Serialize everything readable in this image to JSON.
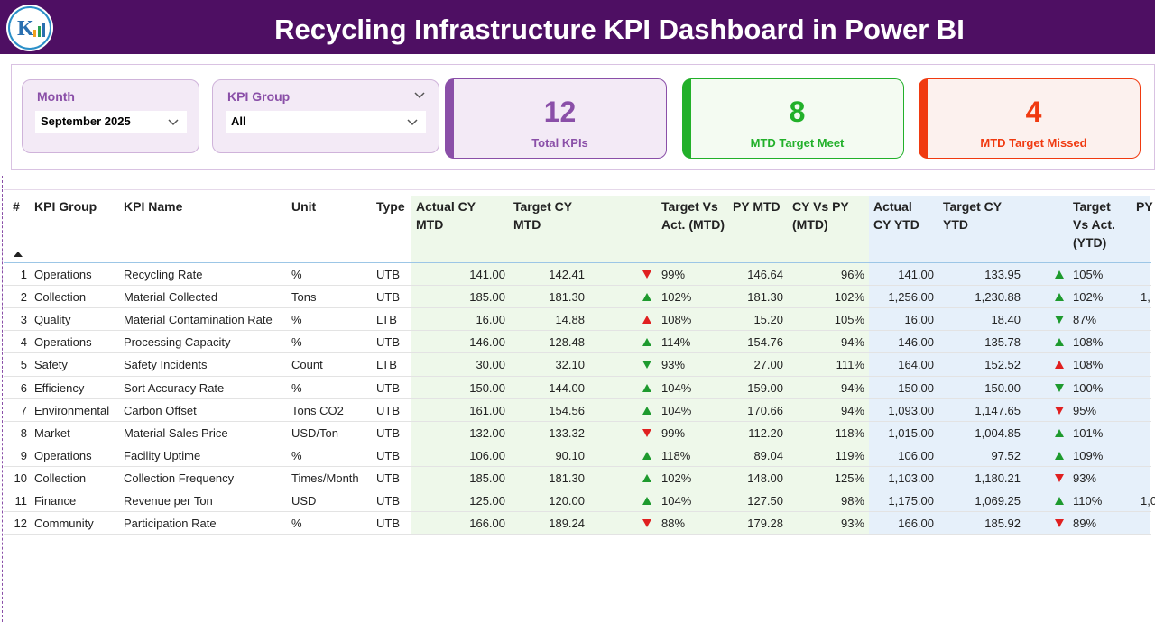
{
  "header": {
    "title": "Recycling Infrastructure KPI Dashboard in Power BI"
  },
  "slicers": [
    {
      "label": "Month",
      "value": "September 2025"
    },
    {
      "label": "KPI Group",
      "value": "All"
    }
  ],
  "cards": [
    {
      "value": "12",
      "label": "Total KPIs",
      "color": "#8a4fa8",
      "bg": "#f3eaf6"
    },
    {
      "value": "8",
      "label": "MTD Target Meet",
      "color": "#22b02a",
      "bg": "#f4fbf2"
    },
    {
      "value": "4",
      "label": "MTD Target Missed",
      "color": "#f03a10",
      "bg": "#fcf1ee"
    }
  ],
  "table": {
    "columns": [
      "#",
      "KPI Group",
      "KPI Name",
      "Unit",
      "Type",
      "Actual CY MTD",
      "Target CY MTD",
      "Target Vs Act. (MTD)",
      "PY MTD",
      "CY Vs PY (MTD)",
      "Actual CY YTD",
      "Target CY YTD",
      "Target Vs Act. (YTD)"
    ],
    "rows": [
      {
        "cells": [
          "1",
          "Operations",
          "Recycling Rate",
          "%",
          "UTB",
          "141.00",
          "142.41",
          "99%",
          "146.64",
          "96%",
          "141.00",
          "133.95",
          "105%"
        ],
        "mtd_arrow": "down-red",
        "ytd_arrow": "up-green"
      },
      {
        "cells": [
          "2",
          "Collection",
          "Material Collected",
          "Tons",
          "UTB",
          "185.00",
          "181.30",
          "102%",
          "181.30",
          "102%",
          "1,256.00",
          "1,230.88",
          "102%"
        ],
        "mtd_arrow": "up-green",
        "ytd_arrow": "up-green"
      },
      {
        "cells": [
          "3",
          "Quality",
          "Material Contamination Rate",
          "%",
          "LTB",
          "16.00",
          "14.88",
          "108%",
          "15.20",
          "105%",
          "16.00",
          "18.40",
          "87%"
        ],
        "mtd_arrow": "up-red",
        "ytd_arrow": "down-green"
      },
      {
        "cells": [
          "4",
          "Operations",
          "Processing Capacity",
          "%",
          "UTB",
          "146.00",
          "128.48",
          "114%",
          "154.76",
          "94%",
          "146.00",
          "135.78",
          "108%"
        ],
        "mtd_arrow": "up-green",
        "ytd_arrow": "up-green"
      },
      {
        "cells": [
          "5",
          "Safety",
          "Safety Incidents",
          "Count",
          "LTB",
          "30.00",
          "32.10",
          "93%",
          "27.00",
          "111%",
          "164.00",
          "152.52",
          "108%"
        ],
        "mtd_arrow": "down-green",
        "ytd_arrow": "up-red"
      },
      {
        "cells": [
          "6",
          "Efficiency",
          "Sort Accuracy Rate",
          "%",
          "UTB",
          "150.00",
          "144.00",
          "104%",
          "159.00",
          "94%",
          "150.00",
          "150.00",
          "100%"
        ],
        "mtd_arrow": "up-green",
        "ytd_arrow": "down-green"
      },
      {
        "cells": [
          "7",
          "Environmental",
          "Carbon Offset",
          "Tons CO2",
          "UTB",
          "161.00",
          "154.56",
          "104%",
          "170.66",
          "94%",
          "1,093.00",
          "1,147.65",
          "95%"
        ],
        "mtd_arrow": "up-green",
        "ytd_arrow": "down-red"
      },
      {
        "cells": [
          "8",
          "Market",
          "Material Sales Price",
          "USD/Ton",
          "UTB",
          "132.00",
          "133.32",
          "99%",
          "112.20",
          "118%",
          "1,015.00",
          "1,004.85",
          "101%"
        ],
        "mtd_arrow": "down-red",
        "ytd_arrow": "up-green"
      },
      {
        "cells": [
          "9",
          "Operations",
          "Facility Uptime",
          "%",
          "UTB",
          "106.00",
          "90.10",
          "118%",
          "89.04",
          "119%",
          "106.00",
          "97.52",
          "109%"
        ],
        "mtd_arrow": "up-green",
        "ytd_arrow": "up-green"
      },
      {
        "cells": [
          "10",
          "Collection",
          "Collection Frequency",
          "Times/Month",
          "UTB",
          "185.00",
          "181.30",
          "102%",
          "148.00",
          "125%",
          "1,103.00",
          "1,180.21",
          "93%"
        ],
        "mtd_arrow": "up-green",
        "ytd_arrow": "down-red"
      },
      {
        "cells": [
          "11",
          "Finance",
          "Revenue per Ton",
          "USD",
          "UTB",
          "125.00",
          "120.00",
          "104%",
          "127.50",
          "98%",
          "1,175.00",
          "1,069.25",
          "110%"
        ],
        "mtd_arrow": "up-green",
        "ytd_arrow": "up-green"
      },
      {
        "cells": [
          "12",
          "Community",
          "Participation Rate",
          "%",
          "UTB",
          "166.00",
          "189.24",
          "88%",
          "179.28",
          "93%",
          "166.00",
          "185.92",
          "89%"
        ],
        "mtd_arrow": "down-red",
        "ytd_arrow": "down-red"
      }
    ],
    "cut_column": {
      "header": "PY",
      "cells": {
        "1": "1,",
        "10": "1,0"
      }
    }
  }
}
